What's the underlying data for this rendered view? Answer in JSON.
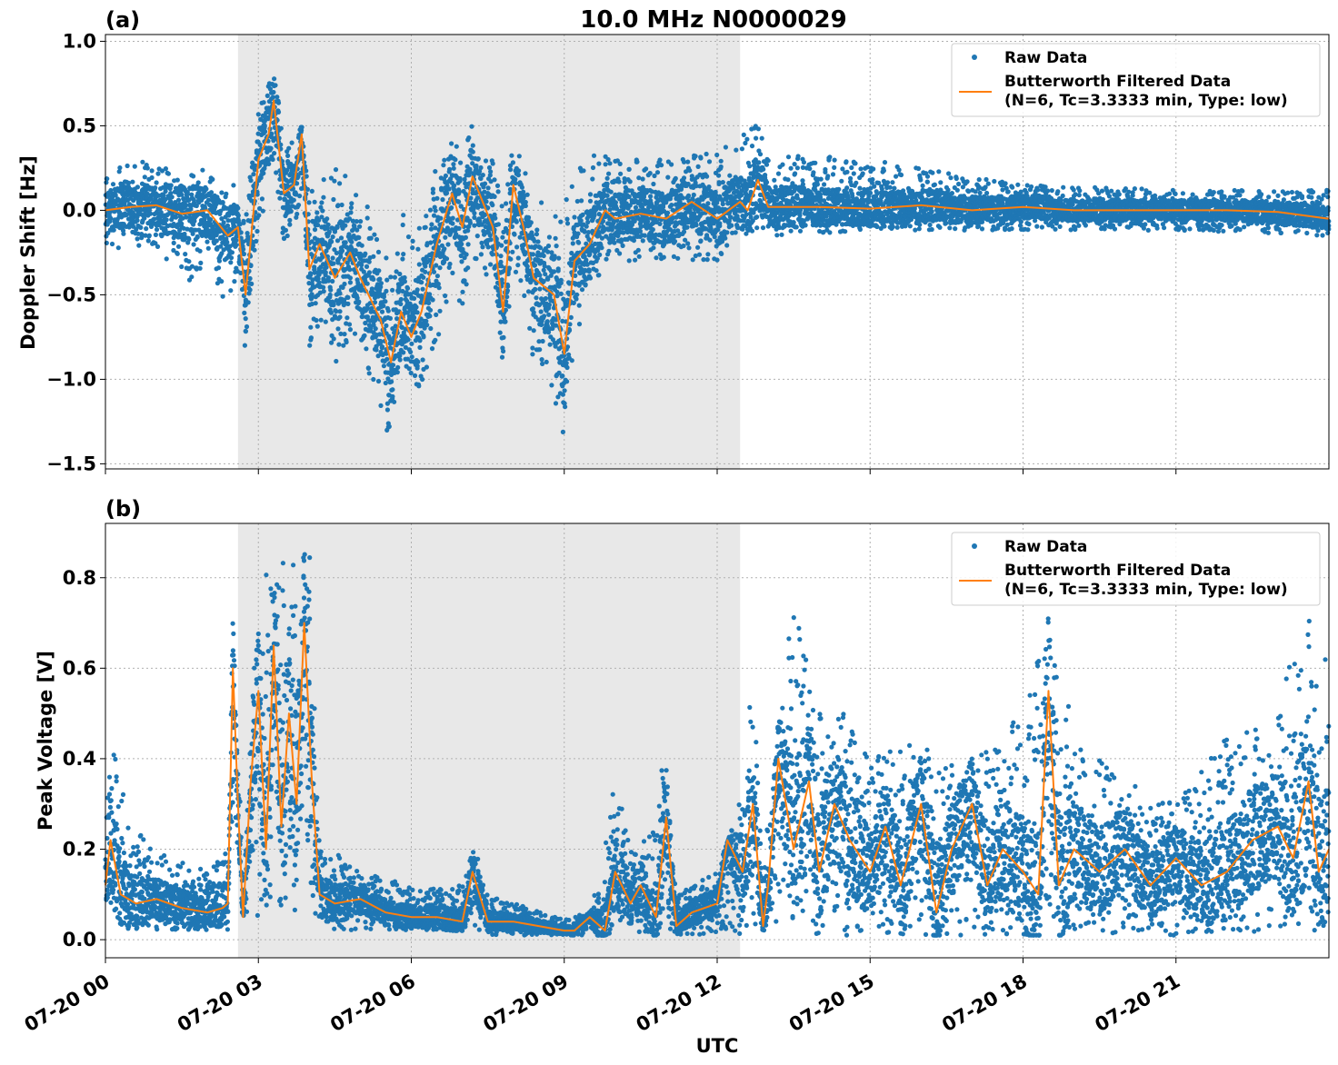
{
  "figure": {
    "title": "10.0 MHz N0000029",
    "xlabel": "UTC",
    "xtick_labels": [
      "07-20 00",
      "07-20 03",
      "07-20 06",
      "07-20 09",
      "07-20 12",
      "07-20 15",
      "07-20 18",
      "07-20 21"
    ]
  },
  "colors": {
    "raw": "#1f77b4",
    "filtered": "#ff7f0e",
    "shade": "#e8e8e8",
    "grid": "#b0b0b0"
  },
  "legend": {
    "raw_label": "Raw Data",
    "filtered_label_line1": "Butterworth Filtered Data",
    "filtered_label_line2": "(N=6, Tc=3.3333 min, Type: low)"
  },
  "chart_data": [
    {
      "type": "scatter",
      "panel_label": "(a)",
      "ylabel": "Doppler Shift [Hz]",
      "xlim_hours": [
        0,
        24
      ],
      "ylim": [
        -1.53,
        1.04
      ],
      "yticks": [
        -1.5,
        -1.0,
        -0.5,
        0.0,
        0.5,
        1.0
      ],
      "ytick_labels": [
        "−1.5",
        "−1.0",
        "−0.5",
        "0.0",
        "0.5",
        "1.0"
      ],
      "shaded_interval_hours": [
        2.6,
        12.45
      ],
      "grid": true,
      "legend_position": "top-right",
      "series": [
        {
          "name": "Butterworth Filtered Data",
          "style": "line",
          "x_hours": [
            0,
            0.5,
            1,
            1.5,
            2,
            2.4,
            2.6,
            2.75,
            3,
            3.2,
            3.3,
            3.5,
            3.7,
            3.85,
            4,
            4.2,
            4.5,
            4.8,
            5,
            5.4,
            5.6,
            5.8,
            6,
            6.2,
            6.5,
            6.8,
            7,
            7.2,
            7.4,
            7.6,
            7.8,
            8,
            8.2,
            8.4,
            8.6,
            8.8,
            9,
            9.2,
            9.5,
            9.8,
            10,
            10.5,
            11,
            11.5,
            12,
            12.45,
            12.6,
            12.8,
            13,
            14,
            15,
            16,
            17,
            18,
            19,
            20,
            21,
            22,
            23,
            24
          ],
          "values": [
            0,
            0.02,
            0.03,
            -0.02,
            0,
            -0.15,
            -0.1,
            -0.5,
            0.3,
            0.45,
            0.65,
            0.1,
            0.15,
            0.45,
            -0.35,
            -0.2,
            -0.4,
            -0.25,
            -0.4,
            -0.65,
            -0.9,
            -0.6,
            -0.75,
            -0.6,
            -0.2,
            0.1,
            -0.1,
            0.2,
            0.05,
            -0.1,
            -0.6,
            0.15,
            -0.1,
            -0.4,
            -0.45,
            -0.5,
            -0.85,
            -0.3,
            -0.2,
            0,
            -0.05,
            -0.02,
            -0.05,
            0.05,
            -0.05,
            0.05,
            0,
            0.18,
            0.02,
            0.02,
            0.01,
            0.03,
            0,
            0.02,
            0,
            0,
            0,
            0,
            -0.01,
            -0.05
          ]
        }
      ],
      "raw_series": {
        "name": "Raw Data",
        "style": "points",
        "envelope_x_hours": [
          0,
          1,
          1.5,
          2,
          2.4,
          2.6,
          2.75,
          3,
          3.2,
          3.3,
          3.5,
          3.7,
          3.85,
          4,
          4.5,
          5,
          5.4,
          5.6,
          5.8,
          6,
          6.5,
          6.8,
          7,
          7.2,
          7.4,
          7.6,
          7.8,
          8,
          8.4,
          8.8,
          9,
          9.2,
          9.5,
          10,
          11,
          12,
          12.45,
          12.8,
          13,
          15,
          18,
          21,
          24
        ],
        "envelope_low": [
          -0.25,
          -0.2,
          -0.5,
          -0.3,
          -0.6,
          -0.35,
          -0.9,
          -0.1,
          0.1,
          0.3,
          -0.2,
          -0.1,
          0.1,
          -0.8,
          -0.9,
          -0.8,
          -1.2,
          -1.38,
          -1.0,
          -1.2,
          -0.8,
          -0.4,
          -0.6,
          -0.3,
          -0.4,
          -0.5,
          -1.0,
          -0.3,
          -0.9,
          -1.1,
          -1.42,
          -0.8,
          -0.5,
          -0.3,
          -0.3,
          -0.3,
          -0.15,
          -0.15,
          -0.15,
          -0.12,
          -0.12,
          -0.12,
          -0.15
        ],
        "envelope_high": [
          0.25,
          0.3,
          0.2,
          0.25,
          0.1,
          0.2,
          0,
          0.6,
          0.75,
          0.92,
          0.4,
          0.4,
          0.5,
          0.1,
          0.25,
          0.15,
          -0.2,
          -0.35,
          0.1,
          -0.2,
          0.3,
          0.5,
          0.3,
          0.55,
          0.35,
          0.3,
          0,
          0.42,
          0.1,
          0,
          0.1,
          0.2,
          0.35,
          0.3,
          0.3,
          0.35,
          0.45,
          0.62,
          0.35,
          0.3,
          0.15,
          0.12,
          0.12
        ]
      }
    },
    {
      "type": "scatter",
      "panel_label": "(b)",
      "ylabel": "Peak Voltage [V]",
      "xlim_hours": [
        0,
        24
      ],
      "ylim": [
        -0.04,
        0.92
      ],
      "yticks": [
        0.0,
        0.2,
        0.4,
        0.6,
        0.8
      ],
      "ytick_labels": [
        "0.0",
        "0.2",
        "0.4",
        "0.6",
        "0.8"
      ],
      "shaded_interval_hours": [
        2.6,
        12.45
      ],
      "grid": true,
      "legend_position": "top-right",
      "series": [
        {
          "name": "Butterworth Filtered Data",
          "style": "line",
          "x_hours": [
            0,
            0.1,
            0.3,
            0.6,
            1,
            1.5,
            2,
            2.3,
            2.4,
            2.5,
            2.6,
            2.7,
            2.85,
            3,
            3.15,
            3.3,
            3.45,
            3.6,
            3.75,
            3.9,
            4.05,
            4.2,
            4.5,
            5,
            5.5,
            6,
            6.5,
            7,
            7.2,
            7.5,
            8,
            8.5,
            9,
            9.2,
            9.5,
            9.8,
            10,
            10.3,
            10.5,
            10.8,
            11,
            11.2,
            11.5,
            12,
            12.2,
            12.5,
            12.7,
            12.9,
            13,
            13.2,
            13.5,
            13.8,
            14,
            14.3,
            14.6,
            15,
            15.3,
            15.6,
            16,
            16.3,
            16.6,
            17,
            17.3,
            17.6,
            18,
            18.3,
            18.5,
            18.7,
            19,
            19.5,
            20,
            20.5,
            21,
            21.5,
            22,
            22.5,
            23,
            23.3,
            23.6,
            23.8,
            24
          ],
          "values": [
            0.12,
            0.22,
            0.1,
            0.08,
            0.09,
            0.07,
            0.06,
            0.07,
            0.08,
            0.6,
            0.3,
            0.05,
            0.35,
            0.55,
            0.2,
            0.65,
            0.25,
            0.5,
            0.3,
            0.7,
            0.35,
            0.1,
            0.08,
            0.09,
            0.06,
            0.05,
            0.05,
            0.04,
            0.15,
            0.04,
            0.04,
            0.03,
            0.02,
            0.02,
            0.05,
            0.02,
            0.15,
            0.08,
            0.12,
            0.05,
            0.27,
            0.03,
            0.06,
            0.08,
            0.22,
            0.15,
            0.3,
            0.03,
            0.12,
            0.4,
            0.2,
            0.35,
            0.15,
            0.3,
            0.22,
            0.15,
            0.25,
            0.12,
            0.3,
            0.06,
            0.2,
            0.3,
            0.12,
            0.2,
            0.15,
            0.1,
            0.55,
            0.12,
            0.2,
            0.15,
            0.2,
            0.12,
            0.18,
            0.12,
            0.15,
            0.22,
            0.25,
            0.18,
            0.35,
            0.15,
            0.2
          ]
        }
      ],
      "raw_series": {
        "name": "Raw Data",
        "style": "points",
        "envelope_x_hours": [
          0,
          0.1,
          0.5,
          1,
          2,
          2.4,
          2.5,
          2.7,
          3,
          3.3,
          3.6,
          4,
          4.2,
          4.5,
          5,
          6,
          7,
          7.2,
          7.5,
          8,
          9,
          9.5,
          9.8,
          10,
          10.3,
          10.8,
          11,
          11.2,
          12,
          12.4,
          12.7,
          12.9,
          13,
          13.5,
          14,
          14.5,
          15,
          16,
          17,
          18,
          18.5,
          19,
          20,
          21,
          22,
          23,
          23.5,
          24
        ],
        "envelope_low": [
          0.03,
          0.05,
          0.02,
          0.02,
          0.02,
          0.02,
          0.3,
          0,
          0.05,
          0.1,
          0.05,
          0.05,
          0.03,
          0.02,
          0.02,
          0.02,
          0.02,
          0.02,
          0.01,
          0.01,
          0.01,
          0.01,
          0.01,
          0.02,
          0.01,
          0.01,
          0.02,
          0.01,
          0.01,
          0.01,
          0.01,
          0.01,
          0.01,
          0.02,
          0.01,
          0.01,
          0.01,
          0.01,
          0.01,
          0.01,
          0.01,
          0.01,
          0.01,
          0.01,
          0.01,
          0.01,
          0.01,
          0.01
        ],
        "envelope_high": [
          0.3,
          0.46,
          0.25,
          0.2,
          0.15,
          0.2,
          0.83,
          0.1,
          0.85,
          0.82,
          0.85,
          0.87,
          0.2,
          0.2,
          0.15,
          0.12,
          0.12,
          0.23,
          0.1,
          0.08,
          0.05,
          0.06,
          0.2,
          0.37,
          0.2,
          0.25,
          0.5,
          0.1,
          0.15,
          0.28,
          0.6,
          0.1,
          0.3,
          0.75,
          0.5,
          0.5,
          0.4,
          0.45,
          0.42,
          0.5,
          0.76,
          0.45,
          0.35,
          0.3,
          0.45,
          0.5,
          0.74,
          0.6
        ]
      }
    }
  ]
}
